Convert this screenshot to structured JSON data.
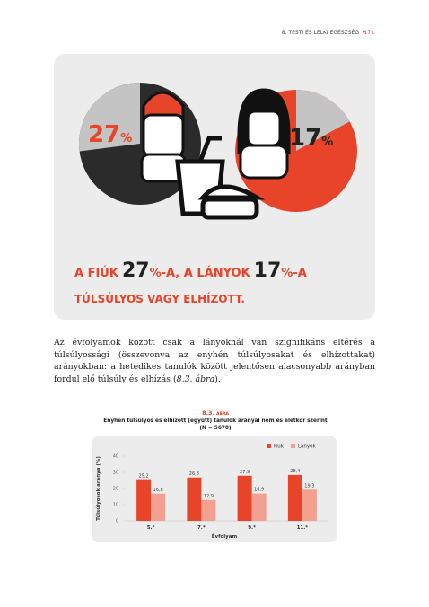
{
  "header": {
    "section": "8. TESTI ÉS LELKI EGÉSZSÉG",
    "page": "171"
  },
  "infographic": {
    "boys_percent": 27,
    "girls_percent": 17,
    "unit": "%",
    "headline": [
      "A FIÚK",
      "-A, A LÁNYOK",
      "-A"
    ],
    "subline": "TÚLSÚLYOS VAGY ELHÍZOTT."
  },
  "paragraph": [
    "Az évfolyamok között csak a lányoknál van szignifikáns eltérés a túlsúlyossági (összevonva az enyhén túlsúlyosakat és elhízottakat) arányokban: a hetedikes tanulók között jelentősen alacsonyabb arányban fordul elő túlsúly és elhízás (",
    "8.3. ábra",
    ")."
  ],
  "chart_data": {
    "type": "bar",
    "figure_number": "8.3.",
    "figure_word": "ÁBRA",
    "title": "Enyhén túlsúlyos és elhízott (együtt) tanulók arányai nem és életkor szerint",
    "subtitle": "(N = 5670)",
    "y_label": "Túlsúlyosok aránya (%)",
    "x_label": "Évfolyam",
    "categories": [
      "5.*",
      "7.*",
      "9.*",
      "11.*"
    ],
    "series": [
      {
        "name": "Fiúk",
        "color": "#e8442a",
        "values": [
          25.2,
          26.8,
          27.9,
          28.4
        ],
        "value_labels": [
          "25,2",
          "26,8",
          "27,9",
          "28,4"
        ]
      },
      {
        "name": "Lányok",
        "color": "#f3a090",
        "values": [
          16.8,
          12.9,
          16.9,
          19.3
        ],
        "value_labels": [
          "16,8",
          "12,9",
          "16,9",
          "19,3"
        ]
      }
    ],
    "ylim": [
      0,
      40
    ],
    "yticks": [
      0,
      10,
      20,
      30,
      40
    ],
    "legend": "top-right"
  }
}
